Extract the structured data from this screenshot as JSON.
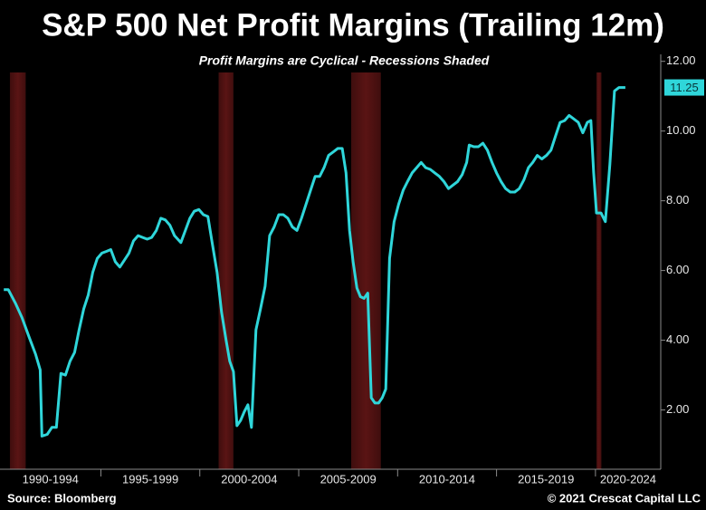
{
  "chart_data": {
    "type": "line",
    "title": "S&P 500 Net Profit Margins (Trailing 12m)",
    "subtitle": "Profit Margins are Cyclical - Recessions Shaded",
    "source": "Source: Bloomberg",
    "credit": "© 2021 Crescat Capital LLC",
    "color": "#2fd6da",
    "recession_color": "#5a1414",
    "x": [
      1990.09,
      1990.32,
      1990.69,
      1991.01,
      1991.33,
      1991.7,
      1991.93,
      1992.02,
      1992.29,
      1992.52,
      1992.75,
      1992.98,
      1993.21,
      1993.44,
      1993.67,
      1993.9,
      1994.13,
      1994.36,
      1994.59,
      1994.82,
      1995.05,
      1995.28,
      1995.5,
      1995.73,
      1995.96,
      1996.19,
      1996.42,
      1996.65,
      1996.88,
      1997.11,
      1997.34,
      1997.57,
      1997.8,
      1998.03,
      1998.26,
      1998.49,
      1998.72,
      1999.04,
      1999.27,
      1999.5,
      1999.72,
      1999.95,
      2000.18,
      2000.41,
      2000.64,
      2000.87,
      2001.1,
      2001.33,
      2001.51,
      2001.7,
      2001.88,
      2002.06,
      2002.25,
      2002.43,
      2002.61,
      2002.84,
      2003.07,
      2003.3,
      2003.53,
      2003.76,
      2003.99,
      2004.22,
      2004.45,
      2004.68,
      2004.91,
      2005.14,
      2005.37,
      2005.6,
      2005.83,
      2006.06,
      2006.28,
      2006.51,
      2006.74,
      2006.97,
      2007.2,
      2007.39,
      2007.57,
      2007.75,
      2007.94,
      2008.12,
      2008.3,
      2008.49,
      2008.67,
      2008.85,
      2009.04,
      2009.22,
      2009.4,
      2009.59,
      2009.82,
      2010.05,
      2010.28,
      2010.5,
      2010.73,
      2010.96,
      2011.19,
      2011.42,
      2011.65,
      2011.88,
      2012.11,
      2012.34,
      2012.57,
      2012.8,
      2013.03,
      2013.26,
      2013.49,
      2013.62,
      2013.85,
      2014.08,
      2014.31,
      2014.54,
      2014.77,
      2015.0,
      2015.23,
      2015.46,
      2015.69,
      2015.92,
      2016.15,
      2016.38,
      2016.61,
      2016.83,
      2017.06,
      2017.29,
      2017.52,
      2017.75,
      2017.98,
      2018.21,
      2018.44,
      2018.67,
      2018.9,
      2019.13,
      2019.36,
      2019.59,
      2019.77,
      2019.91,
      2020.05,
      2020.28,
      2020.5,
      2020.73,
      2020.96,
      2021.19,
      2021.51
    ],
    "values": [
      5.45,
      5.45,
      5.05,
      4.65,
      4.15,
      3.6,
      3.15,
      1.25,
      1.3,
      1.5,
      1.5,
      3.05,
      3.0,
      3.4,
      3.65,
      4.3,
      4.9,
      5.3,
      5.95,
      6.35,
      6.5,
      6.55,
      6.6,
      6.25,
      6.1,
      6.3,
      6.5,
      6.85,
      7.0,
      6.95,
      6.9,
      6.95,
      7.15,
      7.5,
      7.45,
      7.3,
      7.0,
      6.8,
      7.15,
      7.5,
      7.7,
      7.75,
      7.6,
      7.55,
      6.75,
      5.95,
      4.8,
      4.0,
      3.4,
      3.1,
      1.55,
      1.7,
      1.95,
      2.15,
      1.5,
      4.3,
      4.9,
      5.55,
      7.0,
      7.25,
      7.6,
      7.6,
      7.5,
      7.25,
      7.15,
      7.5,
      7.9,
      8.3,
      8.7,
      8.7,
      8.95,
      9.3,
      9.4,
      9.5,
      9.5,
      8.8,
      7.15,
      6.25,
      5.5,
      5.25,
      5.2,
      5.35,
      2.35,
      2.2,
      2.2,
      2.35,
      2.6,
      6.35,
      7.4,
      7.9,
      8.3,
      8.55,
      8.8,
      8.95,
      9.1,
      8.95,
      8.9,
      8.8,
      8.7,
      8.55,
      8.35,
      8.45,
      8.55,
      8.75,
      9.1,
      9.6,
      9.55,
      9.55,
      9.65,
      9.45,
      9.1,
      8.8,
      8.55,
      8.35,
      8.25,
      8.25,
      8.35,
      8.6,
      8.95,
      9.1,
      9.3,
      9.2,
      9.3,
      9.45,
      9.85,
      10.25,
      10.3,
      10.45,
      10.35,
      10.25,
      9.95,
      10.25,
      10.3,
      8.8,
      7.65,
      7.65,
      7.4,
      9.05,
      11.15,
      11.25,
      11.25
    ],
    "last_value_label": "11.25",
    "recessions": [
      [
        1990.4,
        1991.2
      ],
      [
        2000.95,
        2001.7
      ],
      [
        2007.65,
        2009.15
      ],
      [
        2020.05,
        2020.3
      ]
    ],
    "categories": [
      "1990-1994",
      "1995-1999",
      "2000-2004",
      "2005-2009",
      "2010-2014",
      "2015-2019",
      "2020-2024"
    ],
    "xlim": [
      1989.9,
      2023.3
    ],
    "xticks": [
      1995,
      2000,
      2005,
      2010,
      2015,
      2020
    ],
    "ylim": [
      0.3,
      12.2
    ],
    "yticks": [
      {
        "value": 2,
        "label": "2.00"
      },
      {
        "value": 4,
        "label": "4.00"
      },
      {
        "value": 6,
        "label": "6.00"
      },
      {
        "value": 8,
        "label": "8.00"
      },
      {
        "value": 10,
        "label": "10.00"
      },
      {
        "value": 12,
        "label": "12.00"
      }
    ]
  }
}
